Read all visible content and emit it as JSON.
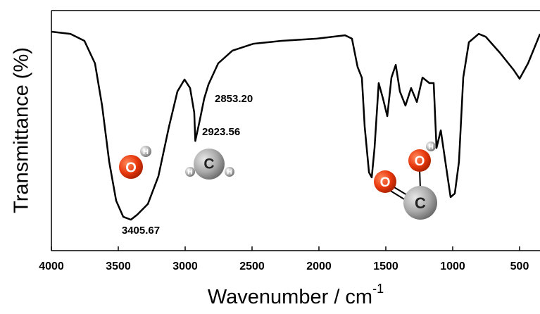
{
  "chart_data": {
    "type": "line",
    "y_label": "Transmittance (%)",
    "x_label": "Wavenumber / cm",
    "x_label_sup": "-1",
    "x": [
      4000,
      3858,
      3753,
      3674,
      3621,
      3568,
      3516,
      3463,
      3406,
      3358,
      3279,
      3200,
      3121,
      3058,
      3005,
      2963,
      2932,
      2924,
      2890,
      2858,
      2826,
      2753,
      2647,
      2489,
      2279,
      2016,
      1805,
      1753,
      1711,
      1679,
      1658,
      1626,
      1605,
      1584,
      1553,
      1521,
      1489,
      1458,
      1426,
      1395,
      1353,
      1311,
      1268,
      1226,
      1174,
      1142,
      1121,
      1089,
      1047,
      1016,
      984,
      953,
      921,
      879,
      805,
      753,
      647,
      542,
      500,
      437,
      347
    ],
    "series": [
      {
        "color": "#000000",
        "values": [
          91.2,
          90.3,
          87.4,
          78,
          60.4,
          37,
          20.8,
          14.1,
          12.9,
          15,
          19.4,
          31,
          51.6,
          66.3,
          71.3,
          67.7,
          57.5,
          45.7,
          54.5,
          63.3,
          69.2,
          78,
          83.3,
          86.2,
          87.4,
          88.3,
          89.7,
          88.3,
          76.5,
          72,
          51.6,
          32.6,
          30.5,
          42.8,
          69.8,
          63.3,
          56,
          72.1,
          77.4,
          66.3,
          60.4,
          67.7,
          61.9,
          72.1,
          69.8,
          69.8,
          42.8,
          50.1,
          34,
          22.3,
          23.8,
          37,
          72.1,
          86.8,
          90.3,
          89.1,
          82.4,
          75.1,
          71.6,
          78,
          90.3
        ]
      }
    ],
    "xlim": [
      4000,
      347
    ],
    "ylim": [
      0,
      100
    ],
    "xticks": [
      4000,
      3500,
      3000,
      2500,
      2000,
      1500,
      1000,
      500
    ],
    "annotations": [
      {
        "text": "3405.67"
      },
      {
        "text": "2923.56"
      },
      {
        "text": "2853.20"
      }
    ],
    "molecules": [
      [
        "O",
        "H"
      ],
      [
        "C",
        "H",
        "H"
      ],
      [
        "O",
        "C",
        "O",
        "H"
      ]
    ]
  }
}
